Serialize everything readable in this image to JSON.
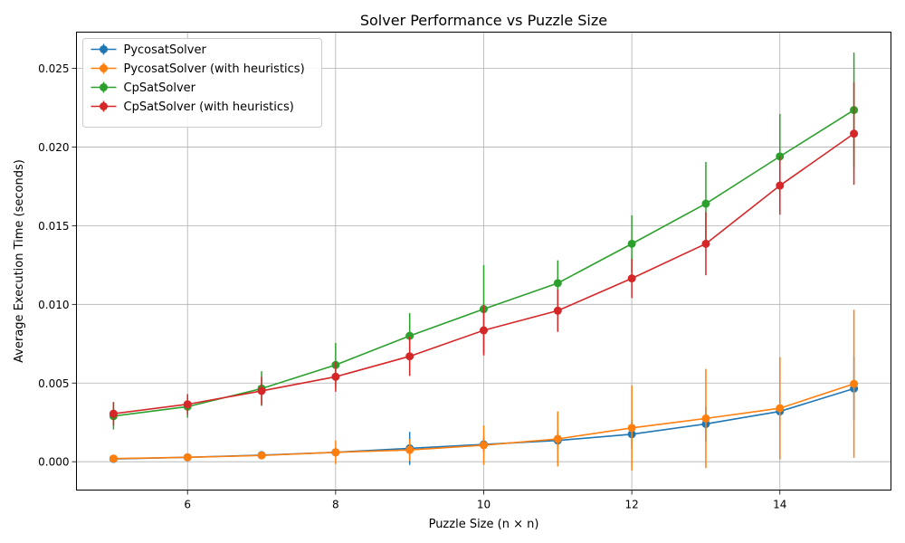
{
  "chart_data": {
    "type": "line",
    "title": "Solver Performance vs Puzzle Size",
    "xlabel": "Puzzle Size (n × n)",
    "ylabel": "Average Execution Time (seconds)",
    "xlim": [
      4.5,
      15.5
    ],
    "ylim": [
      -0.0018,
      0.0273
    ],
    "xticks": [
      6,
      8,
      10,
      12,
      14
    ],
    "yticks": [
      0.0,
      0.005,
      0.01,
      0.015,
      0.02,
      0.025
    ],
    "ytick_decimals": 3,
    "grid": true,
    "legend_position": "top-left",
    "x": [
      5,
      6,
      7,
      8,
      9,
      10,
      11,
      12,
      13,
      14,
      15
    ],
    "series": [
      {
        "name": "PycosatSolver",
        "color": "#1f77b4",
        "values": [
          0.00018,
          0.00028,
          0.00042,
          0.0006,
          0.00085,
          0.0011,
          0.00135,
          0.00175,
          0.0024,
          0.0032,
          0.00465
        ],
        "errors": [
          8e-05,
          0.0001,
          0.00015,
          0.0002,
          0.00105,
          0.00045,
          0.0006,
          0.0009,
          0.0011,
          0.0014,
          0.002
        ]
      },
      {
        "name": "PycosatSolver (with heuristics)",
        "color": "#ff7f0e",
        "values": [
          0.0002,
          0.00028,
          0.0004,
          0.0006,
          0.00075,
          0.00105,
          0.00145,
          0.00215,
          0.00275,
          0.0034,
          0.00495
        ],
        "errors": [
          0.0001,
          0.00012,
          0.0002,
          0.00075,
          0.0007,
          0.00125,
          0.00175,
          0.0027,
          0.00315,
          0.00325,
          0.0047
        ]
      },
      {
        "name": "CpSatSolver",
        "color": "#2ca02c",
        "values": [
          0.0029,
          0.0035,
          0.00465,
          0.00615,
          0.008,
          0.0097,
          0.01135,
          0.01385,
          0.0164,
          0.0194,
          0.02235
        ],
        "errors": [
          0.00085,
          0.0007,
          0.0011,
          0.0014,
          0.00145,
          0.0028,
          0.00145,
          0.0018,
          0.00265,
          0.0027,
          0.00365
        ]
      },
      {
        "name": "CpSatSolver (with heuristics)",
        "color": "#d62728",
        "values": [
          0.00305,
          0.00365,
          0.0045,
          0.0054,
          0.0067,
          0.00835,
          0.0096,
          0.01165,
          0.01385,
          0.01755,
          0.02085
        ],
        "errors": [
          0.00075,
          0.00065,
          0.0009,
          0.00095,
          0.00125,
          0.0016,
          0.00135,
          0.00125,
          0.002,
          0.00185,
          0.00325
        ]
      }
    ]
  }
}
